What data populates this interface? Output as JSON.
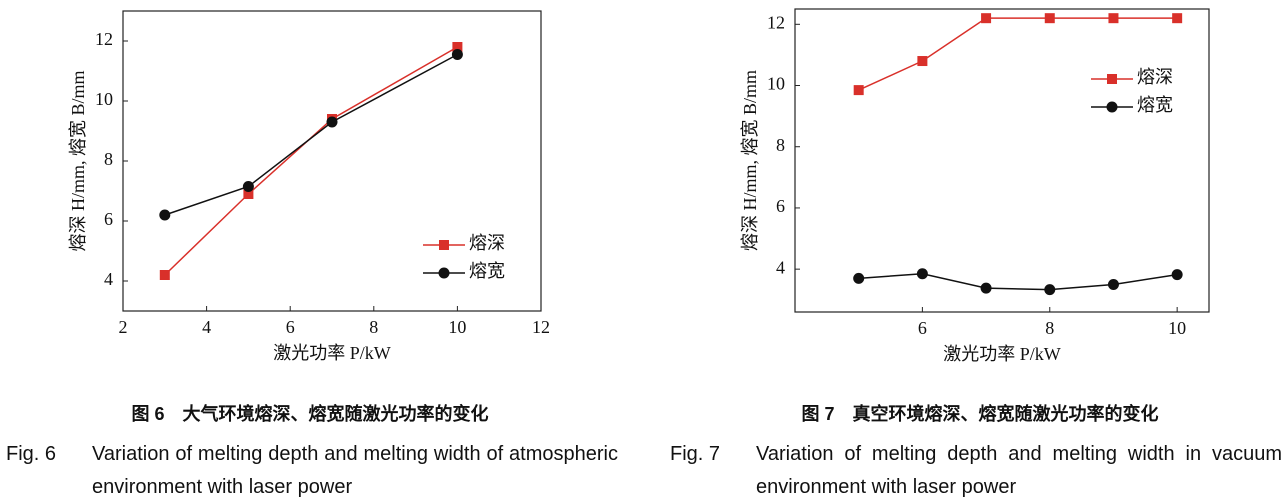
{
  "chart_data": [
    {
      "type": "line",
      "xlabel": "激光功率 P/kW",
      "ylabel": "熔深 H/mm, 熔宽 B/mm",
      "x": [
        3,
        5,
        7,
        10
      ],
      "series": [
        {
          "name": "熔深",
          "color": "#d9302a",
          "marker": "square",
          "values": [
            4.2,
            6.9,
            9.4,
            11.8
          ]
        },
        {
          "name": "熔宽",
          "color": "#111111",
          "marker": "circle",
          "values": [
            6.2,
            7.15,
            9.3,
            11.55
          ]
        }
      ],
      "xlim": [
        2,
        12
      ],
      "xticks": [
        2,
        4,
        6,
        8,
        10,
        12
      ],
      "ylim": [
        3,
        13
      ],
      "yticks": [
        4,
        6,
        8,
        10,
        12
      ],
      "grid": false,
      "legend": "lower right",
      "fig_label_cn": "图 6",
      "caption_cn": "大气环境熔深、熔宽随激光功率的变化",
      "fig_label_en": "Fig. 6",
      "caption_en": "Variation of melting depth and melting width of atmospheric environment with laser power"
    },
    {
      "type": "line",
      "xlabel": "激光功率 P/kW",
      "ylabel": "熔深 H/mm, 熔宽 B/mm",
      "x": [
        5,
        6,
        7,
        8,
        9,
        10
      ],
      "series": [
        {
          "name": "熔深",
          "color": "#d9302a",
          "marker": "square",
          "values": [
            9.85,
            10.8,
            12.2,
            12.2,
            12.2,
            12.2
          ]
        },
        {
          "name": "熔宽",
          "color": "#111111",
          "marker": "circle",
          "values": [
            3.7,
            3.85,
            3.38,
            3.33,
            3.5,
            3.82
          ]
        }
      ],
      "xlim": [
        4,
        10.5
      ],
      "xticks": [
        6,
        8,
        10
      ],
      "ylim": [
        2.6,
        12.5
      ],
      "yticks": [
        4,
        6,
        8,
        10,
        12
      ],
      "grid": false,
      "legend": "upper right",
      "fig_label_cn": "图 7",
      "caption_cn": "真空环境熔深、熔宽随激光功率的变化",
      "fig_label_en": "Fig. 7",
      "caption_en": "Variation of melting depth and melting width in vacuum environment with laser power"
    }
  ]
}
